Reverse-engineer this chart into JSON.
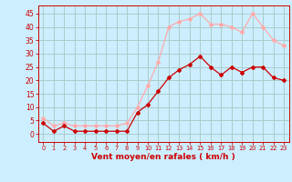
{
  "x": [
    0,
    1,
    2,
    3,
    4,
    5,
    6,
    7,
    8,
    9,
    10,
    11,
    12,
    13,
    14,
    15,
    16,
    17,
    18,
    19,
    20,
    21,
    22,
    23
  ],
  "vent_moyen": [
    4,
    1,
    3,
    1,
    1,
    1,
    1,
    1,
    1,
    8,
    11,
    16,
    21,
    24,
    26,
    29,
    25,
    22,
    25,
    23,
    25,
    25,
    21,
    20
  ],
  "rafales": [
    6,
    3,
    4,
    3,
    3,
    3,
    3,
    3,
    4,
    10,
    18,
    27,
    40,
    42,
    43,
    45,
    41,
    41,
    40,
    38,
    45,
    40,
    35,
    33
  ],
  "color_moyen": "#cc0000",
  "color_rafales": "#ffaaaa",
  "bg_color": "#cceeff",
  "grid_color": "#aacccc",
  "xlabel": "Vent moyen/en rafales ( km/h )",
  "ylabel_ticks": [
    0,
    5,
    10,
    15,
    20,
    25,
    30,
    35,
    40,
    45
  ],
  "ylim": [
    -3,
    48
  ],
  "xlim": [
    -0.5,
    23.5
  ],
  "axis_color": "#cc0000",
  "tick_color": "#cc0000"
}
